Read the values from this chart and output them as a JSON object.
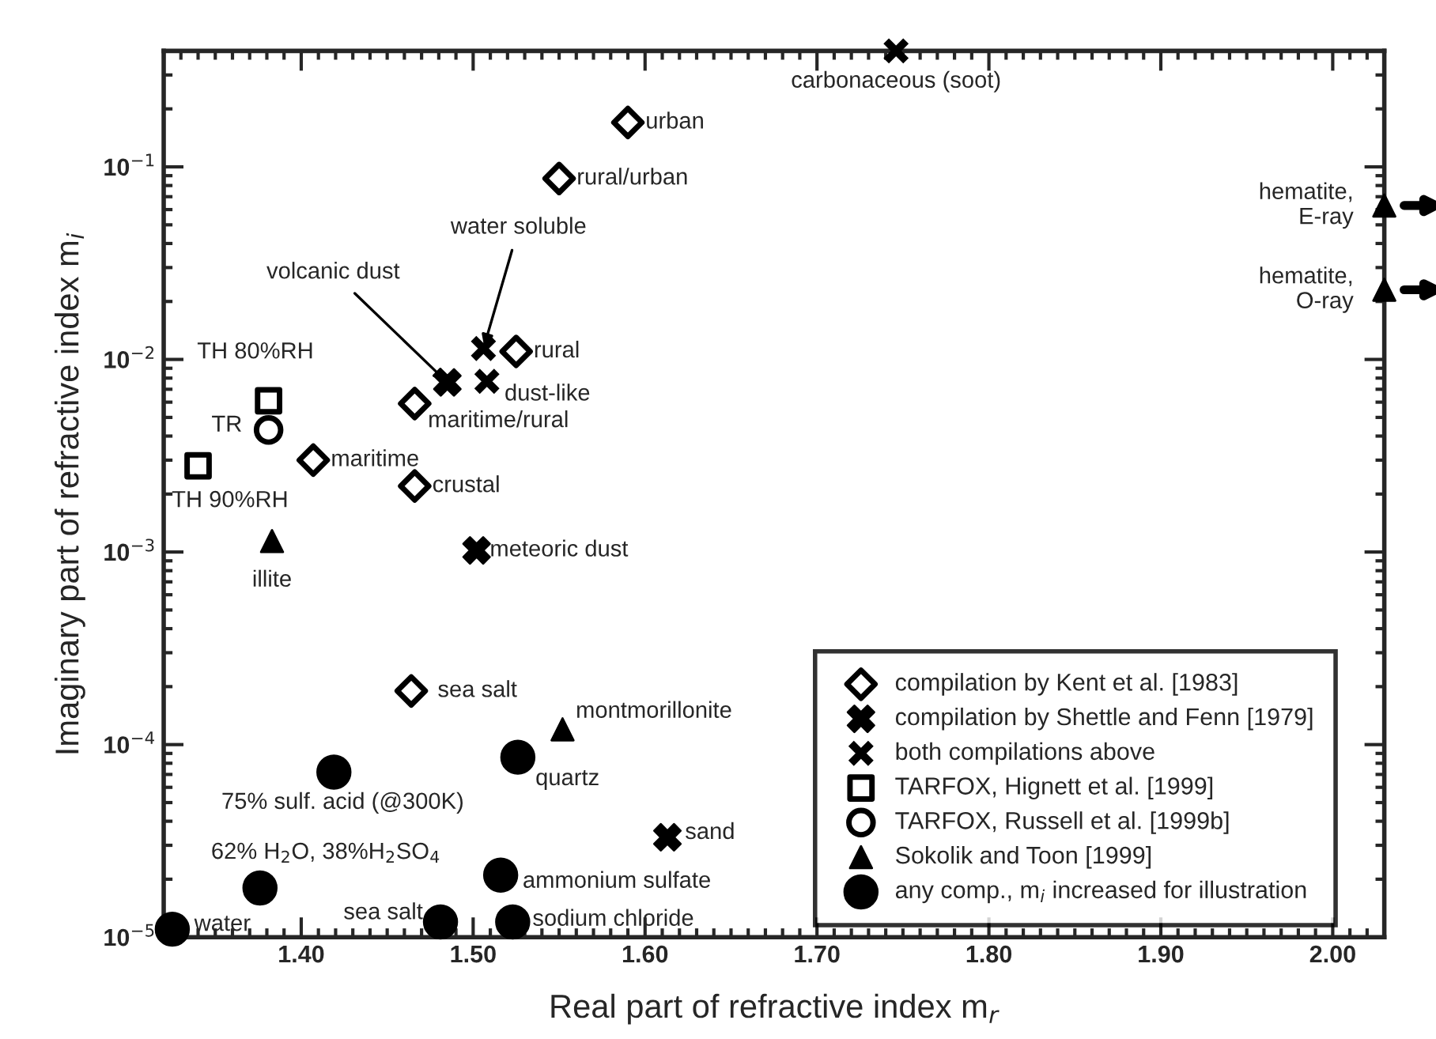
{
  "chart_data": {
    "type": "scatter",
    "xlabel": "Real part of refractive index m$_{r}$",
    "ylabel": "Imaginary part of refractive index m$_{i}$",
    "log": "y",
    "xlim": [
      1.32,
      2.03
    ],
    "ylim": [
      1e-05,
      0.4
    ],
    "xticks": [
      {
        "value": 1.4,
        "label": "1.40"
      },
      {
        "value": 1.5,
        "label": "1.50"
      },
      {
        "value": 1.6,
        "label": "1.60"
      },
      {
        "value": 1.7,
        "label": "1.70"
      },
      {
        "value": 1.8,
        "label": "1.80"
      },
      {
        "value": 1.9,
        "label": "1.90"
      },
      {
        "value": 2.0,
        "label": "2.00"
      }
    ],
    "yticks": [
      {
        "value": 1e-05,
        "label": "10$^{−5}$"
      },
      {
        "value": 0.0001,
        "label": "10$^{−4}$"
      },
      {
        "value": 0.001,
        "label": "10$^{−3}$"
      },
      {
        "value": 0.01,
        "label": "10$^{−2}$"
      },
      {
        "value": 0.1,
        "label": "10$^{−1}$"
      }
    ],
    "grid": false,
    "legend": "bottom right",
    "series": [
      {
        "name": "compilation by Kent et al. [1983]",
        "color": "#000000",
        "marker": "diamond",
        "x": [
          1.59,
          1.55,
          1.525,
          1.466,
          1.407,
          1.466,
          1.464
        ],
        "values": [
          0.17,
          0.087,
          0.011,
          0.0059,
          0.003,
          0.0022,
          0.00019
        ]
      },
      {
        "name": "compilation by Shettle and Fenn [1979]",
        "color": "#000000",
        "marker": "cross",
        "x": [
          1.485,
          1.502,
          1.613
        ],
        "values": [
          0.0076,
          0.00102,
          3.3e-05
        ]
      },
      {
        "name": "both compilations above",
        "color": "#000000",
        "marker": "cross",
        "x": [
          1.506,
          1.508,
          1.746
        ],
        "values": [
          0.0114,
          0.0077,
          0.4
        ]
      },
      {
        "name": "TARFOX, Hignett et al. [1999]",
        "color": "#000000",
        "marker": "square",
        "x": [
          1.381,
          1.34
        ],
        "values": [
          0.0061,
          0.0028
        ]
      },
      {
        "name": "TARFOX, Russell et al. [1999b]",
        "color": "#000000",
        "marker": "circle",
        "x": [
          1.381
        ],
        "values": [
          0.0043
        ]
      },
      {
        "name": "Sokolik and Toon [1999]",
        "color": "#000000",
        "marker": "triangle",
        "x": [
          1.383,
          1.552,
          2.03,
          2.03
        ],
        "values": [
          0.00114,
          0.00012,
          0.063,
          0.023
        ]
      },
      {
        "name": "any comp., m$_{i}$ increased for illustration",
        "color": "#000000",
        "marker": "circle",
        "x": [
          1.325,
          1.376,
          1.419,
          1.481,
          1.516,
          1.523,
          1.526
        ],
        "values": [
          1.1e-05,
          1.8e-05,
          7.2e-05,
          1.2e-05,
          2.1e-05,
          1.2e-05,
          8.6e-05
        ]
      }
    ],
    "annotations": [
      {
        "text": "urban",
        "x": 1.59,
        "y": 0.17
      },
      {
        "text": "rural/urban",
        "x": 1.55,
        "y": 0.087
      },
      {
        "text": "rural",
        "x": 1.525,
        "y": 0.011
      },
      {
        "text": "maritime/rural",
        "x": 1.466,
        "y": 0.0059
      },
      {
        "text": "maritime",
        "x": 1.407,
        "y": 0.003
      },
      {
        "text": "crustal",
        "x": 1.466,
        "y": 0.0022
      },
      {
        "text": "sea salt",
        "x": 1.464,
        "y": 0.00019
      },
      {
        "text": "volcanic dust",
        "x": 1.485,
        "y": 0.0076
      },
      {
        "text": "meteoric dust",
        "x": 1.502,
        "y": 0.00102
      },
      {
        "text": "sand",
        "x": 1.613,
        "y": 3.3e-05
      },
      {
        "text": "water soluble",
        "x": 1.506,
        "y": 0.0114
      },
      {
        "text": "dust-like",
        "x": 1.508,
        "y": 0.0077
      },
      {
        "text": "carbonaceous (soot)",
        "x": 1.746,
        "y": 0.4
      },
      {
        "text": "TH 80%RH",
        "x": 1.381,
        "y": 0.0061
      },
      {
        "text": "TH 90%RH",
        "x": 1.34,
        "y": 0.0028
      },
      {
        "text": "TR",
        "x": 1.381,
        "y": 0.0043
      },
      {
        "text": "illite",
        "x": 1.383,
        "y": 0.00114
      },
      {
        "text": "montmorillonite",
        "x": 1.552,
        "y": 0.00012
      },
      {
        "text": "hematite,\nE-ray",
        "x": 2.03,
        "y": 0.063
      },
      {
        "text": "hematite,\nO-ray",
        "x": 2.03,
        "y": 0.023
      },
      {
        "text": "water",
        "x": 1.325,
        "y": 1.1e-05
      },
      {
        "text": "62% H$_{2}$O, 38%H$_{2}$SO$_{4}$",
        "x": 1.376,
        "y": 1.8e-05
      },
      {
        "text": "75% sulf. acid (@300K)",
        "x": 1.419,
        "y": 7.2e-05
      },
      {
        "text": "sea salt",
        "x": 1.481,
        "y": 1.2e-05
      },
      {
        "text": "ammonium sulfate",
        "x": 1.516,
        "y": 2.1e-05
      },
      {
        "text": "sodium chloride",
        "x": 1.523,
        "y": 1.2e-05
      },
      {
        "text": "quartz",
        "x": 1.526,
        "y": 8.6e-05
      }
    ]
  }
}
